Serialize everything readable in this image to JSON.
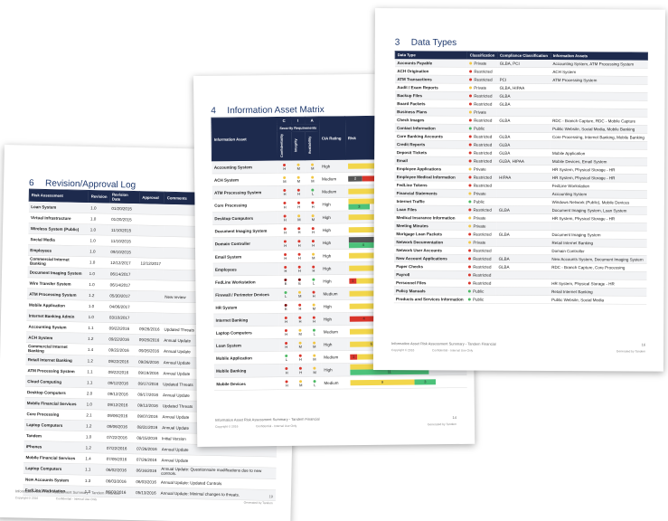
{
  "pages": [
    {
      "section": "6",
      "title": "Revision/Approval Log",
      "table": {
        "header": [
          "Risk Assessment",
          "Revision",
          "Revision Date",
          "Approval",
          "Comments"
        ],
        "rows": [
          [
            "Loan System",
            "1.0",
            "01/20/2015",
            null,
            null
          ],
          [
            "Virtual Infrastructure",
            "1.0",
            "01/20/2015",
            null,
            null
          ],
          [
            "Wireless System (Public)",
            "1.0",
            "11/10/2015",
            null,
            null
          ],
          [
            "Social Media",
            "1.0",
            "11/10/2015",
            null,
            null
          ],
          [
            "Employees",
            "1.0",
            "09/10/2015",
            null,
            null
          ],
          [
            "Commercial Internet Banking",
            "1.0",
            "12/12/2017",
            "12/12/2017",
            null
          ],
          [
            "Document Imaging System",
            "1.0",
            "06/14/2017",
            null,
            null
          ],
          [
            "Wire Transfer System",
            "1.0",
            "06/14/2017",
            null,
            null
          ],
          [
            "ATM Processing System",
            "1.2",
            "05/30/2017",
            null,
            "New review"
          ],
          [
            "Mobile Application",
            "1.0",
            "04/06/2017",
            null,
            null
          ],
          [
            "Internet Banking Admin",
            "1.0",
            "03/10/2017",
            null,
            null
          ],
          [
            "Accounting System",
            "1.1",
            "09/22/2016",
            "09/26/2016",
            "Updated Threats"
          ],
          [
            "ACH System",
            "1.2",
            "09/22/2016",
            "09/26/2016",
            "Annual Update"
          ],
          [
            "Commercial Internet Banking",
            "1.4",
            "09/22/2016",
            "09/26/2016",
            "Annual Update"
          ],
          [
            "Retail Internet Banking",
            "1.2",
            "09/22/2016",
            "09/26/2016",
            "Annual Update"
          ],
          [
            "ATM Processing System",
            "1.1",
            "09/22/2016",
            "09/19/2016",
            "Annual Update"
          ],
          [
            "Cloud Computing",
            "1.1",
            "09/12/2016",
            "09/17/2016",
            "Updated Threats"
          ],
          [
            "Desktop Computers",
            "2.0",
            "09/12/2016",
            "09/17/2016",
            "Annual Update"
          ],
          [
            "Mobile Financial Services",
            "1.0",
            "09/12/2016",
            "09/12/2016",
            "Updated Threats"
          ],
          [
            "Core Processing",
            "2.1",
            "09/06/2016",
            "09/07/2016",
            "Annual Update"
          ],
          [
            "Laptop Computers",
            "1.2",
            "09/06/2016",
            "08/31/2016",
            "Annual Update"
          ],
          [
            "Tandem",
            "1.0",
            "07/22/2016",
            "08/15/2016",
            "Initial Version"
          ],
          [
            "iPhones",
            "1.2",
            "07/22/2016",
            "07/26/2016",
            "Annual Update"
          ],
          [
            "Mobile Financial Services",
            "1.4",
            "07/05/2016",
            "07/26/2016",
            "Annual Update"
          ],
          [
            "Laptop Computers",
            "1.1",
            "06/02/2016",
            "06/16/2016",
            "Annual Update: Questionnaire modifications due to new controls."
          ],
          [
            "New Accounts System",
            "1.3",
            "06/03/2016",
            "06/03/2016",
            "Annual Update: Updated Controls"
          ],
          [
            "FedLine Workstation",
            "1.3",
            "06/03/2016",
            "05/13/2016",
            "Annual Update: Minimal changes to threats."
          ]
        ]
      },
      "footer": {
        "title": "Information Asset Risk Assessment Summary - Tandem Financial",
        "page": "19",
        "copyright": "Copyright © 2016",
        "confidential": "Confidential - Internal Use Only",
        "generated": "Generated by Tandem"
      }
    },
    {
      "section": "4",
      "title": "Information Asset Matrix",
      "header": {
        "asset": "Information Asset",
        "c": "C",
        "i": "I",
        "a": "A",
        "rating": "CIA Rating",
        "risk": "Risk",
        "security": "Security Requirements",
        "confidentiality": "Confidentiality",
        "integrity": "Integrity",
        "availability": "Availability"
      },
      "rows": [
        {
          "asset": "Accounting System",
          "c": "H",
          "i": "M",
          "a": "M",
          "rating": "High",
          "risk": [
            0,
            0,
            12,
            0
          ]
        },
        {
          "asset": "ACH System",
          "c": "M",
          "i": "M",
          "a": "M",
          "rating": "Medium",
          "risk": [
            2,
            4,
            6,
            3
          ]
        },
        {
          "asset": "ATM Processing System",
          "c": "H",
          "i": "H",
          "a": "L",
          "rating": "Medium",
          "risk": [
            0,
            0,
            10,
            5
          ]
        },
        {
          "asset": "Core Processing",
          "c": "H",
          "i": "H",
          "a": "H",
          "rating": "High",
          "risk": [
            0,
            0,
            14,
            3
          ]
        },
        {
          "asset": "Desktop Computers",
          "c": "H",
          "i": "M",
          "a": "M",
          "rating": "High",
          "risk": [
            0,
            0,
            10,
            0
          ]
        },
        {
          "asset": "Document Imaging System",
          "c": "H",
          "i": "H",
          "a": "H",
          "rating": "High",
          "risk": [
            0,
            0,
            13,
            0
          ]
        },
        {
          "asset": "Domain Controller",
          "c": "H",
          "i": "H",
          "a": "H",
          "rating": "High",
          "risk": [
            8,
            0,
            5,
            4
          ]
        },
        {
          "asset": "Email System",
          "c": "H",
          "i": "H",
          "a": "M",
          "rating": "High",
          "risk": [
            0,
            0,
            12,
            0
          ]
        },
        {
          "asset": "Employees",
          "c": "H",
          "i": "H",
          "a": "H",
          "rating": "High",
          "risk": [
            0,
            0,
            16,
            0
          ]
        },
        {
          "asset": "FedLine Workstation",
          "c": "E",
          "i": "E",
          "a": "L",
          "rating": "High",
          "risk": [
            0,
            1,
            12,
            0
          ]
        },
        {
          "asset": "Firewall / Perimeter Devices",
          "c": "L",
          "i": "M",
          "a": "H",
          "rating": "Medium",
          "risk": [
            0,
            0,
            11,
            0
          ]
        },
        {
          "asset": "HR System",
          "c": "E",
          "i": "H",
          "a": "M",
          "rating": "High",
          "risk": [
            0,
            0,
            14,
            0
          ]
        },
        {
          "asset": "Internet Banking",
          "c": "H",
          "i": "H",
          "a": "H",
          "rating": "High",
          "risk": [
            0,
            4,
            9,
            3
          ]
        },
        {
          "asset": "Laptop Computers",
          "c": "H",
          "i": "M",
          "a": "L",
          "rating": "Medium",
          "risk": [
            0,
            0,
            12,
            0
          ]
        },
        {
          "asset": "Loan System",
          "c": "H",
          "i": "M",
          "a": "M",
          "rating": "High",
          "risk": [
            0,
            0,
            6,
            0
          ]
        },
        {
          "asset": "Mobile Application",
          "c": "L",
          "i": "H",
          "a": "M",
          "rating": "Medium",
          "risk": [
            0,
            1,
            10,
            0
          ]
        },
        {
          "asset": "Mobile Banking",
          "c": "H",
          "i": "H",
          "a": "M",
          "rating": "High",
          "risk": [
            0,
            0,
            8,
            11
          ]
        },
        {
          "asset": "Mobile Devices",
          "c": "H",
          "i": "M",
          "a": "L",
          "rating": "Medium",
          "risk": [
            0,
            0,
            9,
            3
          ]
        }
      ],
      "footer": {
        "title": "Information Asset Risk Assessment Summary - Tandem Financial",
        "page": "14",
        "copyright": "Copyright © 2016",
        "confidential": "Confidential - Internal Use Only",
        "generated": "Generated by Tandem"
      }
    },
    {
      "section": "3",
      "title": "Data Types",
      "table": {
        "header": [
          "Data Type",
          "Classification",
          "Compliance Classification",
          "Information Assets"
        ],
        "rows": [
          [
            "Accounts Payable",
            "Private",
            "GLBA, PCI",
            "Accounting System, ATM Processing System"
          ],
          [
            "ACH Origination",
            "Restricted",
            null,
            "ACH System"
          ],
          [
            "ATM Transactions",
            "Restricted",
            "PCI",
            "ATM Processing System"
          ],
          [
            "Audit / Exam Reports",
            "Private",
            "GLBA, HIPAA",
            null
          ],
          [
            "Backup Files",
            "Restricted",
            "GLBA",
            null
          ],
          [
            "Board Packets",
            "Restricted",
            "GLBA",
            null
          ],
          [
            "Business Plans",
            "Private",
            null,
            null
          ],
          [
            "Check Images",
            "Restricted",
            "GLBA",
            "RDC - Branch Capture, RDC - Mobile Capture"
          ],
          [
            "Contact Information",
            "Public",
            null,
            "Public Website, Social Media, Mobile Banking"
          ],
          [
            "Core Banking Accounts",
            "Restricted",
            "GLBA",
            "Core Processing, Internet Banking, Mobile Banking"
          ],
          [
            "Credit Reports",
            "Restricted",
            "GLBA",
            null
          ],
          [
            "Deposit Tickets",
            "Restricted",
            "GLBA",
            "Mobile Application"
          ],
          [
            "Email",
            "Restricted",
            "GLBA, HIPAA",
            "Mobile Devices, Email System"
          ],
          [
            "Employee Applications",
            "Private",
            null,
            "HR System, Physical Storage - HR"
          ],
          [
            "Employee Medical Information",
            "Restricted",
            "HIPAA",
            "HR System, Physical Storage - HR"
          ],
          [
            "FedLine Tokens",
            "Restricted",
            null,
            "FedLine Workstation"
          ],
          [
            "Financial Statements",
            "Private",
            null,
            "Accounting System"
          ],
          [
            "Internet Traffic",
            "Public",
            null,
            "Windows Network (Public), Mobile Devices"
          ],
          [
            "Loan Files",
            "Restricted",
            "GLBA",
            "Document Imaging System, Loan System"
          ],
          [
            "Medical Insurance Information",
            "Private",
            null,
            "HR System, Physical Storage - HR"
          ],
          [
            "Meeting Minutes",
            "Private",
            null,
            null
          ],
          [
            "Mortgage Loan Packets",
            "Restricted",
            "GLBA",
            "Document Imaging System"
          ],
          [
            "Network Documentation",
            "Private",
            null,
            "Retail Internet Banking"
          ],
          [
            "Network User Accounts",
            "Restricted",
            null,
            "Domain Controller"
          ],
          [
            "New Account Applications",
            "Restricted",
            "GLBA",
            "New Accounts System, Document Imaging System"
          ],
          [
            "Paper Checks",
            "Restricted",
            "GLBA",
            "RDC - Branch Capture, Core Processing"
          ],
          [
            "Payroll",
            "Restricted",
            null,
            null
          ],
          [
            "Personnel Files",
            "Restricted",
            null,
            "HR System, Physical Storage - HR"
          ],
          [
            "Policy Manuals",
            "Public",
            null,
            "Retail Internet Banking"
          ],
          [
            "Products and Services Information",
            "Public",
            null,
            "Public Website, Social Media"
          ]
        ]
      },
      "footer": {
        "title": "Information Asset Risk Assessment Summary - Tandem Financial",
        "page": "16",
        "copyright": "Copyright © 2016",
        "confidential": "Confidential - Internal Use Only",
        "generated": "Generated by Tandem"
      }
    }
  ]
}
